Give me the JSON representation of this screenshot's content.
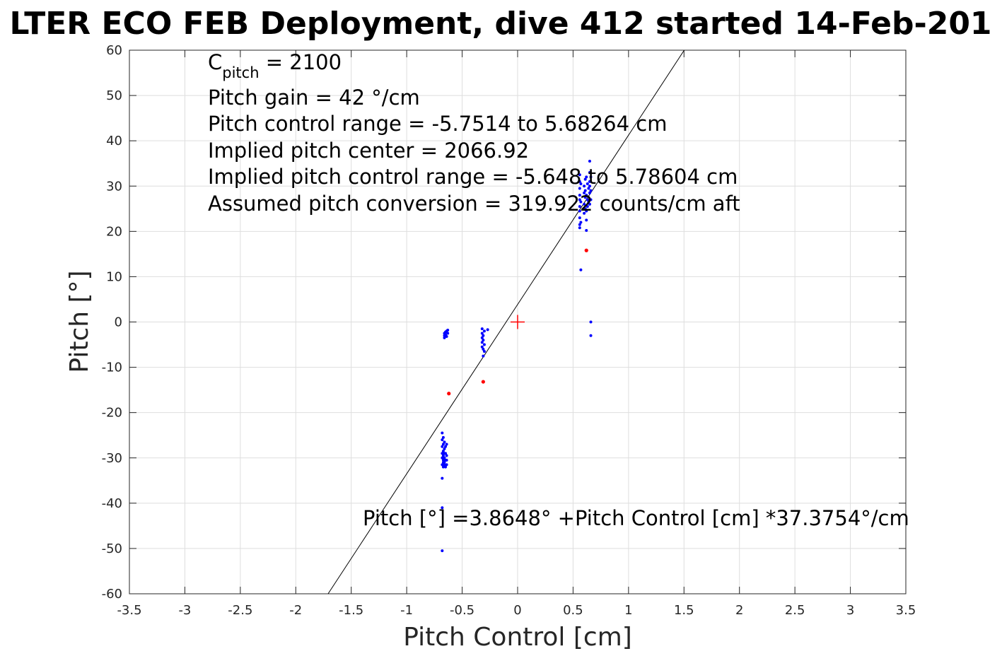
{
  "chart_data": {
    "type": "scatter",
    "title": "LTER ECO FEB Deployment, dive 412 started 14-Feb-201",
    "xlabel": "Pitch Control [cm]",
    "ylabel": "Pitch [°]",
    "xlim": [
      -3.5,
      3.5
    ],
    "ylim": [
      -60,
      60
    ],
    "xticks": [
      "-3.5",
      "-3",
      "-2.5",
      "-2",
      "-1.5",
      "-1",
      "-0.5",
      "0",
      "0.5",
      "1",
      "1.5",
      "2",
      "2.5",
      "3",
      "3.5"
    ],
    "yticks": [
      "60",
      "50",
      "40",
      "30",
      "20",
      "10",
      "0",
      "-10",
      "-20",
      "-30",
      "-40",
      "-50",
      "-60"
    ],
    "grid": true,
    "annotations": {
      "c_pitch_base": "C",
      "c_pitch_sub": "pitch",
      "c_pitch_value": " = 2100",
      "pitch_gain": "Pitch gain = 42 °/cm",
      "control_range": "Pitch control range = -5.7514 to 5.68264 cm",
      "implied_center": "Implied pitch center = 2066.92",
      "implied_range": "Implied pitch control range = -5.648 to 5.78604 cm",
      "assumed_conversion": "Assumed pitch conversion = 319.922 counts/cm aft",
      "fit_equation": "Pitch [°] =3.8648° +Pitch Control [cm] *37.3754°/cm"
    },
    "fit_line": {
      "intercept": 3.8648,
      "slope": 37.3754,
      "color": "#000000"
    },
    "center_marker": {
      "x": 0,
      "y": 0,
      "color": "#ff0000",
      "symbol": "+"
    },
    "series": [
      {
        "color": "#0000ff",
        "marker": "dot",
        "points": [
          [
            0.56,
            32.5
          ],
          [
            0.56,
            31.0
          ],
          [
            0.56,
            29.5
          ],
          [
            0.56,
            28.0
          ],
          [
            0.56,
            27.0
          ],
          [
            0.56,
            25.5
          ],
          [
            0.56,
            24.5
          ],
          [
            0.56,
            23.0
          ],
          [
            0.56,
            21.5
          ],
          [
            0.56,
            20.8
          ],
          [
            0.57,
            30.5
          ],
          [
            0.57,
            26.5
          ],
          [
            0.57,
            22.0
          ],
          [
            0.57,
            11.5
          ],
          [
            0.6,
            30.0
          ],
          [
            0.6,
            28.5
          ],
          [
            0.6,
            26.0
          ],
          [
            0.6,
            24.0
          ],
          [
            0.61,
            31.5
          ],
          [
            0.61,
            29.0
          ],
          [
            0.61,
            27.5
          ],
          [
            0.61,
            25.0
          ],
          [
            0.62,
            32.0
          ],
          [
            0.62,
            28.0
          ],
          [
            0.62,
            24.5
          ],
          [
            0.62,
            22.5
          ],
          [
            0.62,
            20.2
          ],
          [
            0.63,
            30.5
          ],
          [
            0.63,
            27.0
          ],
          [
            0.63,
            25.5
          ],
          [
            0.64,
            29.5
          ],
          [
            0.64,
            26.5
          ],
          [
            0.65,
            35.5
          ],
          [
            0.65,
            33.0
          ],
          [
            0.65,
            31.0
          ],
          [
            0.65,
            30.0
          ],
          [
            0.65,
            28.5
          ],
          [
            0.65,
            26.0
          ],
          [
            0.66,
            32.0
          ],
          [
            0.66,
            29.0
          ],
          [
            0.66,
            27.0
          ],
          [
            0.66,
            0.0
          ],
          [
            0.66,
            -3.0
          ],
          [
            -0.66,
            -2.5
          ],
          [
            -0.66,
            -3.0
          ],
          [
            -0.66,
            -3.5
          ],
          [
            -0.65,
            -2.2
          ],
          [
            -0.65,
            -2.8
          ],
          [
            -0.64,
            -2.0
          ],
          [
            -0.64,
            -3.2
          ],
          [
            -0.63,
            -1.8
          ],
          [
            -0.63,
            -2.5
          ],
          [
            -0.32,
            -1.5
          ],
          [
            -0.32,
            -2.5
          ],
          [
            -0.32,
            -3.5
          ],
          [
            -0.32,
            -4.5
          ],
          [
            -0.32,
            -5.5
          ],
          [
            -0.31,
            -3.0
          ],
          [
            -0.31,
            -4.0
          ],
          [
            -0.31,
            -6.0
          ],
          [
            -0.31,
            -7.5
          ],
          [
            -0.3,
            -2.0
          ],
          [
            -0.3,
            -5.0
          ],
          [
            -0.3,
            -6.5
          ],
          [
            -0.27,
            -1.7
          ],
          [
            -0.68,
            -24.5
          ],
          [
            -0.68,
            -26.0
          ],
          [
            -0.68,
            -27.5
          ],
          [
            -0.68,
            -29.0
          ],
          [
            -0.68,
            -30.0
          ],
          [
            -0.68,
            -31.5
          ],
          [
            -0.68,
            -34.5
          ],
          [
            -0.68,
            -41.0
          ],
          [
            -0.68,
            -50.5
          ],
          [
            -0.67,
            -25.5
          ],
          [
            -0.67,
            -27.0
          ],
          [
            -0.67,
            -28.5
          ],
          [
            -0.67,
            -29.5
          ],
          [
            -0.67,
            -30.5
          ],
          [
            -0.67,
            -31.0
          ],
          [
            -0.67,
            -32.0
          ],
          [
            -0.66,
            -26.5
          ],
          [
            -0.66,
            -28.0
          ],
          [
            -0.66,
            -29.0
          ],
          [
            -0.66,
            -30.0
          ],
          [
            -0.66,
            -31.0
          ],
          [
            -0.66,
            -31.5
          ],
          [
            -0.65,
            -27.5
          ],
          [
            -0.65,
            -29.0
          ],
          [
            -0.65,
            -30.5
          ],
          [
            -0.65,
            -32.0
          ],
          [
            -0.64,
            -27.0
          ],
          [
            -0.64,
            -29.5
          ],
          [
            -0.64,
            -30.5
          ],
          [
            -0.64,
            -31.5
          ]
        ]
      },
      {
        "color": "#ff0000",
        "marker": "dot",
        "points": [
          [
            0.62,
            15.8
          ],
          [
            -0.62,
            -15.8
          ],
          [
            -0.31,
            -13.2
          ]
        ]
      }
    ]
  }
}
